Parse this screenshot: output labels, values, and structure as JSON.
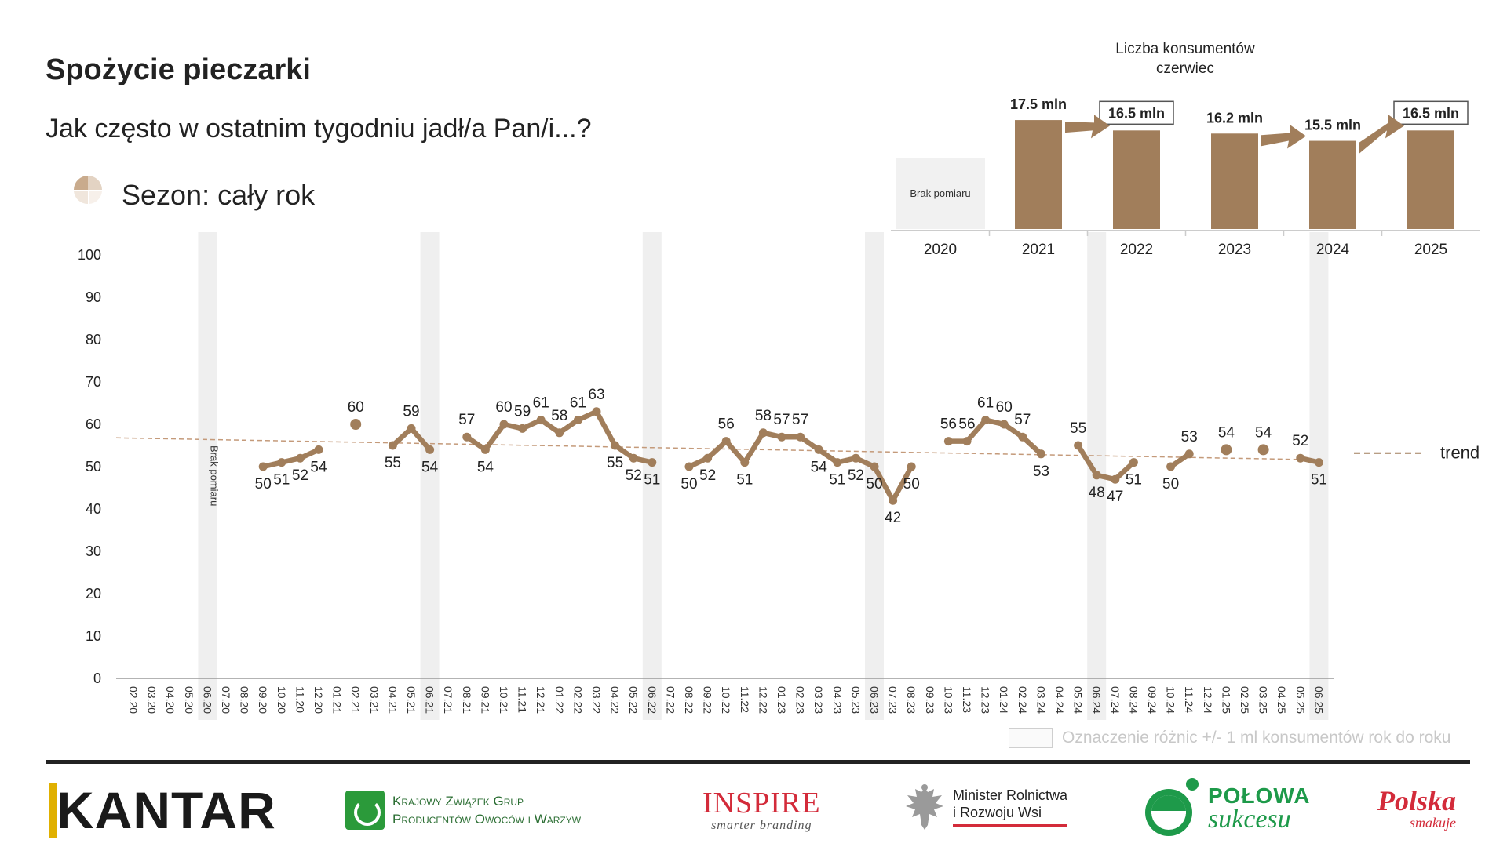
{
  "title": "Spożycie pieczarki",
  "question": "Jak często w ostatnim tygodniu jadł/a Pan/i...?",
  "season": "Sezon: cały rok",
  "consumers_title_line1": "Liczba konsumentów",
  "consumers_title_line2": "czerwiec",
  "legend_diff_label": "Oznaczenie różnic +/- 1 ml konsumentów rok do roku",
  "colors": {
    "series": "#a17e5b",
    "trend": "#c49a7a",
    "shade": "#efefef",
    "text": "#222222",
    "box_border": "#555555"
  },
  "logos": {
    "kantar": "KANTAR",
    "kzgp_line1": "Krajowy Związek Grup",
    "kzgp_line2": "Producentów Owoców i Warzyw",
    "inspire_main": "INSPIRE",
    "inspire_sub": "smarter branding",
    "minister_line1": "Minister Rolnictwa",
    "minister_line2": "i Rozwoju Wsi",
    "polowa_line1": "POŁOWA",
    "polowa_line2": "sukcesu",
    "polska_line1": "Polska",
    "polska_line2": "smakuje"
  },
  "chart_data": [
    {
      "type": "line",
      "ylim": [
        0,
        100
      ],
      "yticks": [
        0,
        10,
        20,
        30,
        40,
        50,
        60,
        70,
        80,
        90,
        100
      ],
      "categories": [
        "02.20",
        "03.20",
        "04.20",
        "05.20",
        "06.20",
        "07.20",
        "08.20",
        "09.20",
        "10.20",
        "11.20",
        "12.20",
        "01.21",
        "02.21",
        "03.21",
        "04.21",
        "05.21",
        "06.21",
        "07.21",
        "08.21",
        "09.21",
        "10.21",
        "11.21",
        "12.21",
        "01.22",
        "02.22",
        "03.22",
        "04.22",
        "05.22",
        "06.22",
        "07.22",
        "08.22",
        "09.22",
        "10.22",
        "11.22",
        "12.22",
        "01.23",
        "02.23",
        "03.23",
        "04.23",
        "05.23",
        "06.23",
        "07.23",
        "08.23",
        "09.23",
        "10.23",
        "11.23",
        "12.23",
        "01.24",
        "02.24",
        "03.24",
        "04.24",
        "05.24",
        "06.24",
        "07.24",
        "08.24",
        "09.24",
        "10.24",
        "11.24",
        "12.24",
        "01.25",
        "02.25",
        "03.25",
        "04.25",
        "05.25",
        "06.25"
      ],
      "values": [
        null,
        null,
        null,
        null,
        null,
        null,
        null,
        50,
        51,
        52,
        54,
        null,
        60,
        null,
        55,
        59,
        54,
        null,
        57,
        54,
        60,
        59,
        61,
        58,
        61,
        63,
        55,
        52,
        51,
        null,
        50,
        52,
        56,
        51,
        58,
        57,
        57,
        54,
        51,
        52,
        50,
        42,
        50,
        null,
        56,
        56,
        61,
        60,
        57,
        53,
        null,
        55,
        48,
        47,
        51,
        null,
        50,
        53,
        null,
        54,
        null,
        54,
        null,
        52,
        51
      ],
      "data_labels": [
        "",
        "",
        "",
        "",
        "",
        "",
        "",
        "50",
        "51",
        "52",
        "54",
        "",
        "60",
        "",
        "55",
        "59",
        "54",
        "",
        "57",
        "54",
        "60",
        "59",
        "61",
        "58",
        "61",
        "63",
        "55",
        "52",
        "51",
        "",
        "50",
        "52",
        "56",
        "51",
        "58",
        "57",
        "57",
        "54",
        "51",
        "52",
        "50",
        "42",
        "50",
        "",
        "56",
        "56",
        "61",
        "60",
        "57",
        "53",
        "",
        "55",
        "48",
        "47",
        "51",
        "",
        "50",
        "53",
        "",
        "54",
        "",
        "54",
        "",
        "52",
        "51"
      ],
      "highlighted_months": [
        "06.20",
        "06.21",
        "06.22",
        "06.23",
        "06.24",
        "06.25"
      ],
      "annotation_vertical": "Brak pomiaru",
      "trend": {
        "label": "trend",
        "start": 56.8,
        "end": 51.6
      },
      "grid": false
    },
    {
      "type": "bar",
      "categories": [
        "2020",
        "2021",
        "2022",
        "2023",
        "2024",
        "2025"
      ],
      "values": [
        null,
        17.5,
        16.5,
        16.2,
        15.5,
        16.5
      ],
      "data_labels": [
        "",
        "17.5 mln",
        "16.5 mln",
        "16.2 mln",
        "15.5 mln",
        "16.5 mln"
      ],
      "boxed_labels": [
        false,
        false,
        true,
        false,
        false,
        true
      ],
      "arrows_between": [
        [
          "2021",
          "2022"
        ],
        [
          "2023",
          "2024"
        ],
        [
          "2024",
          "2025"
        ]
      ],
      "missing_label": "Brak pomiaru",
      "missing_category": "2020"
    }
  ]
}
